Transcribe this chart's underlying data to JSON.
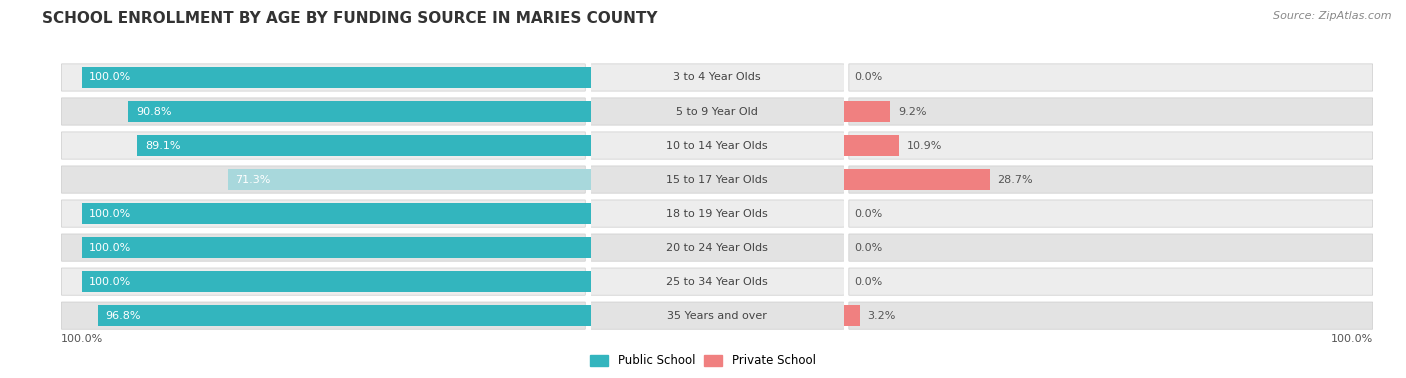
{
  "title": "SCHOOL ENROLLMENT BY AGE BY FUNDING SOURCE IN MARIES COUNTY",
  "source": "Source: ZipAtlas.com",
  "categories": [
    "3 to 4 Year Olds",
    "5 to 9 Year Old",
    "10 to 14 Year Olds",
    "15 to 17 Year Olds",
    "18 to 19 Year Olds",
    "20 to 24 Year Olds",
    "25 to 34 Year Olds",
    "35 Years and over"
  ],
  "public_values": [
    100.0,
    90.8,
    89.1,
    71.3,
    100.0,
    100.0,
    100.0,
    96.8
  ],
  "private_values": [
    0.0,
    9.2,
    10.9,
    28.7,
    0.0,
    0.0,
    0.0,
    3.2
  ],
  "public_color": "#33B5BE",
  "private_color": "#F08080",
  "bar_15_17_public": "#A8D8DC",
  "title_fontsize": 11,
  "label_fontsize": 8,
  "value_fontsize": 8,
  "source_fontsize": 8,
  "legend_fontsize": 8.5,
  "x_axis_label_left": "100.0%",
  "x_axis_label_right": "100.0%",
  "fig_width": 14.06,
  "fig_height": 3.78,
  "dpi": 100,
  "bg_colors": [
    "#EDEDED",
    "#E3E3E3",
    "#EDEDED",
    "#E3E3E3",
    "#EDEDED",
    "#E3E3E3",
    "#EDEDED",
    "#E3E3E3"
  ]
}
